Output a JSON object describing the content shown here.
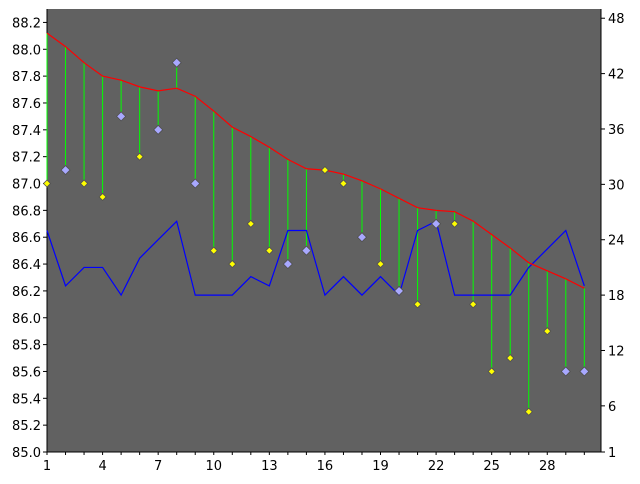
{
  "chart_data": {
    "type": "line",
    "x": [
      1,
      2,
      3,
      4,
      5,
      6,
      7,
      8,
      9,
      10,
      11,
      12,
      13,
      14,
      15,
      16,
      17,
      18,
      19,
      20,
      21,
      22,
      23,
      24,
      25,
      26,
      27,
      28,
      29,
      30
    ],
    "x_ticks": [
      1,
      4,
      7,
      10,
      13,
      16,
      19,
      22,
      25,
      28
    ],
    "y_left": {
      "range": [
        85.0,
        88.3
      ],
      "ticks": [
        85.0,
        85.2,
        85.4,
        85.6,
        85.8,
        86.0,
        86.2,
        86.4,
        86.6,
        86.8,
        87.0,
        87.2,
        87.4,
        87.6,
        87.8,
        88.0,
        88.2
      ]
    },
    "y_right": {
      "range": [
        1,
        49
      ],
      "ticks": [
        1,
        6,
        12,
        18,
        24,
        30,
        36,
        42,
        48
      ]
    },
    "series": [
      {
        "axis": "left",
        "type": "line",
        "values": [
          88.12,
          88.02,
          87.9,
          87.8,
          87.77,
          87.72,
          87.69,
          87.71,
          87.65,
          87.54,
          87.42,
          87.35,
          87.27,
          87.18,
          87.11,
          87.1,
          87.07,
          87.02,
          86.96,
          86.89,
          86.82,
          86.8,
          86.79,
          86.72,
          86.62,
          86.52,
          86.41,
          86.35,
          86.29,
          86.22
        ]
      },
      {
        "axis": "left",
        "type": "scatter",
        "marker": "yellow-diamond",
        "points": [
          [
            1,
            87.0
          ],
          [
            3,
            87.0
          ],
          [
            4,
            86.9
          ],
          [
            6,
            87.2
          ],
          [
            10,
            86.5
          ],
          [
            11,
            86.4
          ],
          [
            12,
            86.7
          ],
          [
            13,
            86.5
          ],
          [
            16,
            87.1
          ],
          [
            17,
            87.0
          ],
          [
            19,
            86.4
          ],
          [
            21,
            86.1
          ],
          [
            23,
            86.7
          ],
          [
            24,
            86.1
          ],
          [
            25,
            85.6
          ],
          [
            26,
            85.7
          ],
          [
            27,
            85.3
          ],
          [
            28,
            85.9
          ]
        ]
      },
      {
        "axis": "left",
        "type": "scatter",
        "marker": "blue-diamond",
        "points": [
          [
            2,
            87.1
          ],
          [
            5,
            87.5
          ],
          [
            7,
            87.4
          ],
          [
            8,
            87.9
          ],
          [
            9,
            87.0
          ],
          [
            14,
            86.4
          ],
          [
            15,
            86.5
          ],
          [
            18,
            86.6
          ],
          [
            20,
            86.2
          ],
          [
            22,
            86.7
          ],
          [
            29,
            85.6
          ],
          [
            30,
            85.6
          ]
        ]
      },
      {
        "axis": "right",
        "type": "line",
        "values": [
          25,
          19,
          21,
          21,
          18,
          22,
          24,
          26,
          18,
          18,
          18,
          20,
          19,
          25,
          25,
          18,
          20,
          18,
          20,
          18,
          25,
          26,
          18,
          18,
          18,
          18,
          21,
          23,
          25,
          19
        ]
      }
    ]
  },
  "colors": {
    "plot_background": "#616161",
    "trend_line": "#ff0000",
    "drop_lines": "#00ff00",
    "yellow_marker": "#ffff00",
    "blue_marker": "#a8a8ff",
    "volume_line": "#0000ff"
  }
}
